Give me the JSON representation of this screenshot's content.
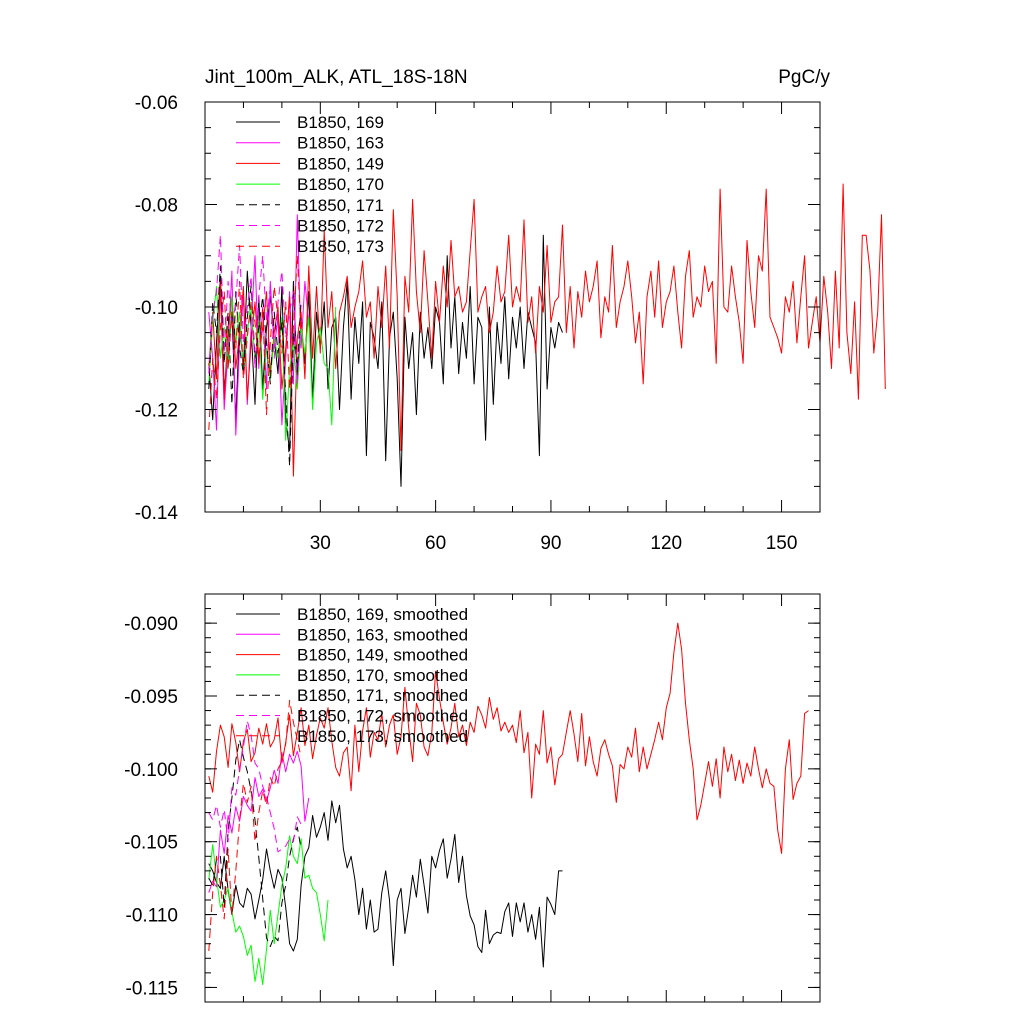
{
  "header": {
    "left_title": "Jint_100m_ALK, ATL_18S-18N",
    "right_title": "PgC/y"
  },
  "colors": {
    "black": "#000000",
    "magenta": "#ff00ff",
    "red": "#ff0000",
    "green": "#00ff00"
  },
  "chart_data": [
    {
      "type": "line",
      "title": "Jint_100m_ALK, ATL_18S-18N",
      "units": "PgC/y",
      "xlim": [
        0,
        160
      ],
      "ylim": [
        -0.14,
        -0.06
      ],
      "xticks": [
        30,
        60,
        90,
        120,
        150
      ],
      "xtick_labels": [
        "30",
        "60",
        "90",
        "120",
        "150"
      ],
      "yticks": [
        -0.14,
        -0.12,
        -0.1,
        -0.08,
        -0.06
      ],
      "ytick_labels": [
        "-0.14",
        "-0.12",
        "-0.10",
        "-0.08",
        "-0.06"
      ],
      "legend_position": "top-left",
      "series": [
        {
          "name": "B1850, 169",
          "color": "#000000",
          "dash": "solid",
          "values": [
            -0.111,
            -0.122,
            -0.107,
            -0.094,
            -0.116,
            -0.11,
            -0.101,
            -0.122,
            -0.103,
            -0.112,
            -0.093,
            -0.104,
            -0.119,
            -0.098,
            -0.116,
            -0.104,
            -0.098,
            -0.106,
            -0.113,
            -0.096,
            -0.122,
            -0.128,
            -0.095,
            -0.114,
            -0.103,
            -0.111,
            -0.097,
            -0.118,
            -0.101,
            -0.108,
            -0.099,
            -0.116,
            -0.104,
            -0.102,
            -0.12,
            -0.104,
            -0.095,
            -0.118,
            -0.102,
            -0.111,
            -0.099,
            -0.129,
            -0.103,
            -0.106,
            -0.112,
            -0.099,
            -0.13,
            -0.106,
            -0.101,
            -0.114,
            -0.135,
            -0.102,
            -0.112,
            -0.105,
            -0.121,
            -0.101,
            -0.11,
            -0.104,
            -0.112,
            -0.1,
            -0.103,
            -0.115,
            -0.09,
            -0.108,
            -0.098,
            -0.113,
            -0.103,
            -0.11,
            -0.096,
            -0.115,
            -0.102,
            -0.104,
            -0.126,
            -0.1,
            -0.119,
            -0.103,
            -0.111,
            -0.098,
            -0.114,
            -0.102,
            -0.108,
            -0.1,
            -0.112,
            -0.101,
            -0.104,
            -0.107,
            -0.129,
            -0.086,
            -0.116,
            -0.104,
            -0.108,
            -0.103,
            -0.105
          ]
        },
        {
          "name": "B1850, 163",
          "color": "#ff00ff",
          "dash": "solid",
          "values": [
            -0.101,
            -0.11,
            -0.124,
            -0.096,
            -0.12,
            -0.108,
            -0.093,
            -0.125,
            -0.107,
            -0.098,
            -0.119,
            -0.104,
            -0.09,
            -0.112,
            -0.1,
            -0.116,
            -0.095,
            -0.108,
            -0.102,
            -0.123,
            -0.11,
            -0.097,
            -0.115,
            -0.082,
            -0.108,
            -0.095,
            -0.103
          ]
        },
        {
          "name": "B1850, 149",
          "color": "#ff0000",
          "dash": "solid",
          "values": [
            -0.112,
            -0.101,
            -0.114,
            -0.095,
            -0.118,
            -0.104,
            -0.098,
            -0.112,
            -0.105,
            -0.096,
            -0.118,
            -0.107,
            -0.099,
            -0.11,
            -0.104,
            -0.097,
            -0.113,
            -0.105,
            -0.1,
            -0.116,
            -0.108,
            -0.098,
            -0.133,
            -0.106,
            -0.101,
            -0.114,
            -0.092,
            -0.11,
            -0.096,
            -0.109,
            -0.085,
            -0.104,
            -0.097,
            -0.112,
            -0.101,
            -0.098,
            -0.094,
            -0.104,
            -0.1,
            -0.097,
            -0.091,
            -0.102,
            -0.099,
            -0.11,
            -0.096,
            -0.104,
            -0.092,
            -0.108,
            -0.081,
            -0.098,
            -0.128,
            -0.094,
            -0.101,
            -0.079,
            -0.097,
            -0.105,
            -0.089,
            -0.099,
            -0.11,
            -0.095,
            -0.103,
            -0.092,
            -0.1,
            -0.087,
            -0.098,
            -0.096,
            -0.101,
            -0.099,
            -0.089,
            -0.079,
            -0.101,
            -0.098,
            -0.096,
            -0.105,
            -0.101,
            -0.092,
            -0.099,
            -0.097,
            -0.086,
            -0.1,
            -0.096,
            -0.099,
            -0.083,
            -0.103,
            -0.098,
            -0.109,
            -0.096,
            -0.101,
            -0.088,
            -0.103,
            -0.099,
            -0.098,
            -0.084,
            -0.105,
            -0.096,
            -0.108,
            -0.097,
            -0.102,
            -0.093,
            -0.099,
            -0.096,
            -0.091,
            -0.106,
            -0.098,
            -0.101,
            -0.088,
            -0.104,
            -0.099,
            -0.096,
            -0.091,
            -0.098,
            -0.107,
            -0.101,
            -0.115,
            -0.098,
            -0.093,
            -0.102,
            -0.091,
            -0.104,
            -0.099,
            -0.097,
            -0.092,
            -0.101,
            -0.108,
            -0.094,
            -0.089,
            -0.102,
            -0.098,
            -0.1,
            -0.092,
            -0.097,
            -0.095,
            -0.111,
            -0.077,
            -0.1,
            -0.101,
            -0.092,
            -0.098,
            -0.103,
            -0.111,
            -0.087,
            -0.097,
            -0.104,
            -0.09,
            -0.093,
            -0.077,
            -0.102,
            -0.104,
            -0.106,
            -0.109,
            -0.098,
            -0.101,
            -0.095,
            -0.107,
            -0.098,
            -0.09,
            -0.108,
            -0.103,
            -0.098,
            -0.107,
            -0.094,
            -0.101,
            -0.112,
            -0.093,
            -0.108,
            -0.076,
            -0.105,
            -0.113,
            -0.099,
            -0.118,
            -0.086,
            -0.086,
            -0.093,
            -0.109,
            -0.101,
            -0.082,
            -0.116
          ]
        },
        {
          "name": "B1850, 170",
          "color": "#00ff00",
          "dash": "solid",
          "values": [
            -0.115,
            -0.103,
            -0.096,
            -0.11,
            -0.104,
            -0.112,
            -0.098,
            -0.107,
            -0.101,
            -0.113,
            -0.105,
            -0.099,
            -0.111,
            -0.103,
            -0.118,
            -0.108,
            -0.114,
            -0.106,
            -0.11,
            -0.102,
            -0.126,
            -0.112,
            -0.107,
            -0.116,
            -0.104,
            -0.109,
            -0.102,
            -0.12,
            -0.107,
            -0.104,
            -0.111,
            -0.112,
            -0.123,
            -0.1
          ]
        },
        {
          "name": "B1850, 171",
          "color": "#000000",
          "dash": "dash",
          "values": [
            -0.116,
            -0.099,
            -0.105,
            -0.092,
            -0.111,
            -0.101,
            -0.119,
            -0.097,
            -0.108,
            -0.113,
            -0.102,
            -0.096,
            -0.11,
            -0.104,
            -0.098,
            -0.107,
            -0.115,
            -0.101,
            -0.109,
            -0.103,
            -0.117,
            -0.131,
            -0.105,
            -0.112,
            -0.099
          ]
        },
        {
          "name": "B1850, 172",
          "color": "#ff00ff",
          "dash": "dash",
          "values": [
            -0.113,
            -0.101,
            -0.097,
            -0.086,
            -0.109,
            -0.095,
            -0.104,
            -0.099,
            -0.088,
            -0.107,
            -0.1,
            -0.094,
            -0.112,
            -0.098,
            -0.09,
            -0.103,
            -0.096,
            -0.11,
            -0.099,
            -0.093,
            -0.106,
            -0.101,
            -0.097,
            -0.115,
            -0.102
          ]
        },
        {
          "name": "B1850, 173",
          "color": "#ff0000",
          "dash": "dash",
          "values": [
            -0.124,
            -0.11,
            -0.118,
            -0.104,
            -0.097,
            -0.112,
            -0.101,
            -0.108,
            -0.095,
            -0.114,
            -0.106,
            -0.099,
            -0.103,
            -0.111,
            -0.1,
            -0.121,
            -0.107,
            -0.096,
            -0.102,
            -0.109,
            -0.099,
            -0.116,
            -0.104,
            -0.09,
            -0.105
          ]
        }
      ]
    },
    {
      "type": "line",
      "title": "",
      "xlim": [
        0,
        160
      ],
      "ylim": [
        -0.116,
        -0.088
      ],
      "xticks": [
        30,
        60,
        90,
        120,
        150
      ],
      "yticks": [
        -0.115,
        -0.11,
        -0.105,
        -0.1,
        -0.095,
        -0.09
      ],
      "ytick_labels": [
        "-0.115",
        "-0.110",
        "-0.105",
        "-0.100",
        "-0.095",
        "-0.090"
      ],
      "legend_position": "top-left",
      "series": [
        {
          "name": "B1850, 169, smoothed",
          "color": "#000000",
          "dash": "solid",
          "values": [
            -0.1065,
            -0.107,
            -0.1078,
            -0.1082,
            -0.106,
            -0.1083,
            -0.11,
            -0.108,
            -0.1092,
            -0.1095,
            -0.1082,
            -0.1086,
            -0.1103,
            -0.109,
            -0.1076,
            -0.1055,
            -0.107,
            -0.1082,
            -0.1069,
            -0.1075,
            -0.1095,
            -0.112,
            -0.1125,
            -0.1117,
            -0.108,
            -0.106,
            -0.1054,
            -0.1032,
            -0.1047,
            -0.104,
            -0.103,
            -0.1049,
            -0.1022,
            -0.1037,
            -0.1025,
            -0.1055,
            -0.1068,
            -0.106,
            -0.1076,
            -0.11,
            -0.1082,
            -0.111,
            -0.109,
            -0.1112,
            -0.111,
            -0.1085,
            -0.107,
            -0.109,
            -0.1135,
            -0.109,
            -0.1082,
            -0.1113,
            -0.1095,
            -0.1073,
            -0.1088,
            -0.1062,
            -0.108,
            -0.1099,
            -0.106,
            -0.1068,
            -0.1056,
            -0.1048,
            -0.1075,
            -0.1062,
            -0.1045,
            -0.1078,
            -0.106,
            -0.1087,
            -0.1101,
            -0.1107,
            -0.1122,
            -0.1126,
            -0.1097,
            -0.112,
            -0.1114,
            -0.1112,
            -0.1113,
            -0.1098,
            -0.1092,
            -0.1115,
            -0.1092,
            -0.1105,
            -0.1092,
            -0.1112,
            -0.11,
            -0.1117,
            -0.1095,
            -0.1136,
            -0.1088,
            -0.1093,
            -0.11,
            -0.107,
            -0.107
          ]
        },
        {
          "name": "B1850, 163, smoothed",
          "color": "#ff00ff",
          "dash": "solid",
          "values": [
            -0.1085,
            -0.1077,
            -0.1081,
            -0.1042,
            -0.1058,
            -0.1032,
            -0.1044,
            -0.1026,
            -0.1036,
            -0.1019,
            -0.1025,
            -0.1029,
            -0.1006,
            -0.1019,
            -0.1014,
            -0.1022,
            -0.1013,
            -0.1001,
            -0.101,
            -0.0989,
            -0.1002,
            -0.099,
            -0.0996,
            -0.0988,
            -0.0998,
            -0.1036,
            -0.102
          ]
        },
        {
          "name": "B1850, 149, smoothed",
          "color": "#ff0000",
          "dash": "solid",
          "values": [
            -0.1005,
            -0.1016,
            -0.0988,
            -0.097,
            -0.0978,
            -0.0999,
            -0.0969,
            -0.0982,
            -0.1002,
            -0.0981,
            -0.0973,
            -0.0995,
            -0.0989,
            -0.0972,
            -0.0983,
            -0.0969,
            -0.0985,
            -0.098,
            -0.0965,
            -0.0996,
            -0.0982,
            -0.0963,
            -0.0991,
            -0.0975,
            -0.0958,
            -0.0984,
            -0.097,
            -0.0993,
            -0.0977,
            -0.0965,
            -0.0972,
            -0.0958,
            -0.0981,
            -0.0999,
            -0.1005,
            -0.0989,
            -0.0985,
            -0.1015,
            -0.097,
            -0.1002,
            -0.0974,
            -0.0958,
            -0.0992,
            -0.0975,
            -0.098,
            -0.0962,
            -0.0985,
            -0.097,
            -0.0963,
            -0.099,
            -0.0978,
            -0.0944,
            -0.0972,
            -0.0995,
            -0.0955,
            -0.0963,
            -0.0985,
            -0.0991,
            -0.0975,
            -0.0933,
            -0.0952,
            -0.0968,
            -0.0983,
            -0.0972,
            -0.0955,
            -0.0978,
            -0.097,
            -0.0984,
            -0.0968,
            -0.0975,
            -0.0957,
            -0.0963,
            -0.0972,
            -0.0951,
            -0.0966,
            -0.0958,
            -0.0974,
            -0.0968,
            -0.0975,
            -0.097,
            -0.0982,
            -0.096,
            -0.0989,
            -0.0975,
            -0.102,
            -0.0983,
            -0.099,
            -0.096,
            -0.0996,
            -0.0985,
            -0.1011,
            -0.0993,
            -0.099,
            -0.0975,
            -0.096,
            -0.0976,
            -0.0995,
            -0.0962,
            -0.0998,
            -0.0978,
            -0.0995,
            -0.1005,
            -0.0986,
            -0.098,
            -0.099,
            -0.0998,
            -0.1023,
            -0.0997,
            -0.1,
            -0.0985,
            -0.0992,
            -0.0972,
            -0.1002,
            -0.0985,
            -0.1,
            -0.099,
            -0.098,
            -0.0968,
            -0.098,
            -0.0958,
            -0.0948,
            -0.092,
            -0.09,
            -0.0918,
            -0.0955,
            -0.098,
            -0.1,
            -0.1035,
            -0.1025,
            -0.101,
            -0.0995,
            -0.1012,
            -0.0993,
            -0.102,
            -0.0985,
            -0.1002,
            -0.099,
            -0.1008,
            -0.0994,
            -0.101,
            -0.0996,
            -0.1005,
            -0.0985,
            -0.1,
            -0.1013,
            -0.1,
            -0.101,
            -0.1012,
            -0.1042,
            -0.1058,
            -0.1,
            -0.098,
            -0.1021,
            -0.101,
            -0.1005,
            -0.0962,
            -0.096
          ]
        },
        {
          "name": "B1850, 170, smoothed",
          "color": "#00ff00",
          "dash": "solid",
          "values": [
            -0.1076,
            -0.1052,
            -0.1075,
            -0.1095,
            -0.109,
            -0.1082,
            -0.1098,
            -0.1112,
            -0.1108,
            -0.1115,
            -0.1128,
            -0.1121,
            -0.1146,
            -0.113,
            -0.1148,
            -0.1124,
            -0.1097,
            -0.112,
            -0.11,
            -0.108,
            -0.1068,
            -0.1046,
            -0.106,
            -0.1065,
            -0.1048,
            -0.1075,
            -0.1073,
            -0.1082,
            -0.1085,
            -0.11,
            -0.1118,
            -0.109
          ]
        },
        {
          "name": "B1850, 171, smoothed",
          "color": "#000000",
          "dash": "dash",
          "values": [
            -0.1075,
            -0.108,
            -0.1062,
            -0.106,
            -0.1095,
            -0.1042,
            -0.102,
            -0.0994,
            -0.098,
            -0.0992,
            -0.1002,
            -0.1015,
            -0.1035,
            -0.1061,
            -0.1089,
            -0.1116,
            -0.1122,
            -0.1115,
            -0.1118,
            -0.1092,
            -0.108,
            -0.106,
            -0.1048,
            -0.104,
            -0.1055
          ]
        },
        {
          "name": "B1850, 172, smoothed",
          "color": "#ff00ff",
          "dash": "dash",
          "values": [
            -0.103,
            -0.1035,
            -0.1025,
            -0.104,
            -0.1028,
            -0.105,
            -0.1013,
            -0.1018,
            -0.1,
            -0.0985,
            -0.0967,
            -0.0977,
            -0.0996,
            -0.1,
            -0.1012,
            -0.1019,
            -0.103,
            -0.1041,
            -0.1057,
            -0.1055,
            -0.1053,
            -0.1048,
            -0.105,
            -0.1033,
            -0.1038
          ]
        },
        {
          "name": "B1850, 173, smoothed",
          "color": "#ff0000",
          "dash": "dash",
          "values": [
            -0.1125,
            -0.1085,
            -0.106,
            -0.108,
            -0.1103,
            -0.1055,
            -0.11,
            -0.107,
            -0.1035,
            -0.101,
            -0.1023,
            -0.1012,
            -0.105,
            -0.103,
            -0.1015,
            -0.1025,
            -0.1006,
            -0.1012,
            -0.1,
            -0.0995,
            -0.0983,
            -0.0953,
            -0.0968,
            -0.098,
            -0.0992
          ]
        }
      ]
    }
  ]
}
